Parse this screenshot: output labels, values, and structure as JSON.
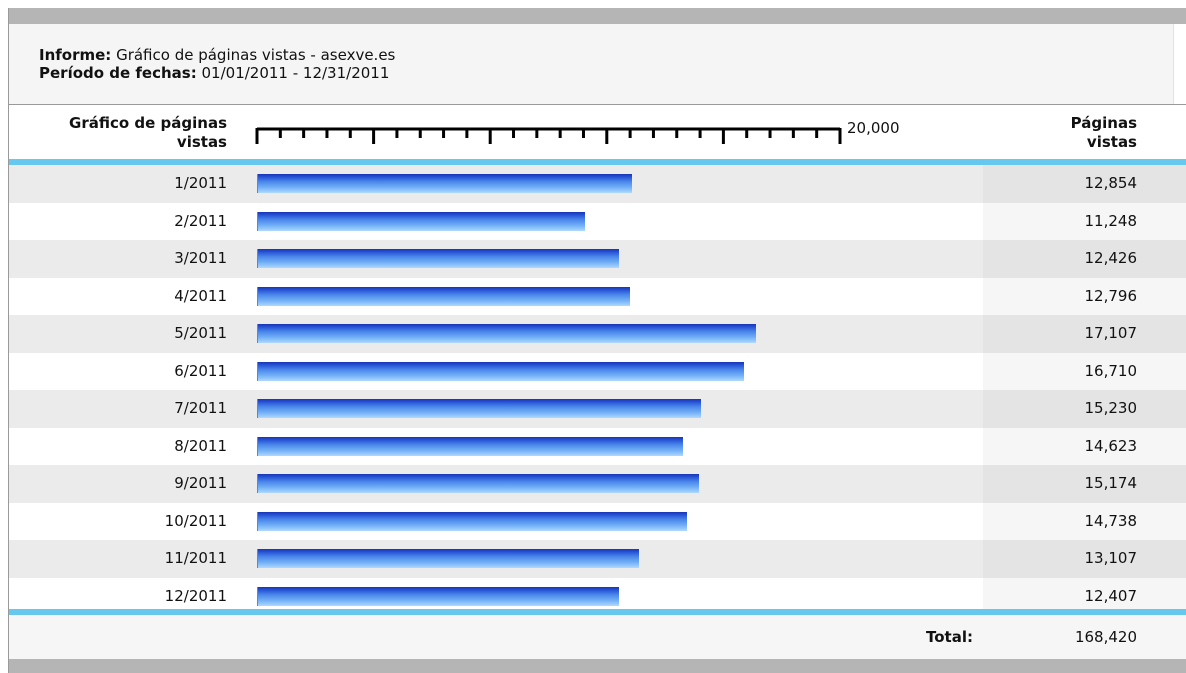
{
  "report": {
    "label": "Informe:",
    "value": "Gráfico de páginas vistas - asexve.es",
    "period_label": "Período de fechas:",
    "period_value": "01/01/2011 - 12/31/2011"
  },
  "header": {
    "category_label_line1": "Gráfico de páginas",
    "category_label_line2": "vistas",
    "value_label_line1": "Páginas",
    "value_label_line2": "vistas"
  },
  "scale": {
    "max_label": "20,000"
  },
  "footer": {
    "total_label": "Total:",
    "total_value": "168,420"
  },
  "colors": {
    "bar_top": "#1735b4",
    "bar_bottom": "#b2d9ff",
    "separator": "#66c8ee",
    "frame_bar": "#b5b5b5"
  },
  "chart_data": {
    "type": "bar",
    "orientation": "horizontal",
    "xlim": [
      0,
      20000
    ],
    "categories": [
      "1/2011",
      "2/2011",
      "3/2011",
      "4/2011",
      "5/2011",
      "6/2011",
      "7/2011",
      "8/2011",
      "9/2011",
      "10/2011",
      "11/2011",
      "12/2011"
    ],
    "values": [
      12854,
      11248,
      12426,
      12796,
      17107,
      16710,
      15230,
      14623,
      15174,
      14738,
      13107,
      12407
    ],
    "value_labels": [
      "12,854",
      "11,248",
      "12,426",
      "12,796",
      "17,107",
      "16,710",
      "15,230",
      "14,623",
      "15,174",
      "14,738",
      "13,107",
      "12,407"
    ]
  }
}
